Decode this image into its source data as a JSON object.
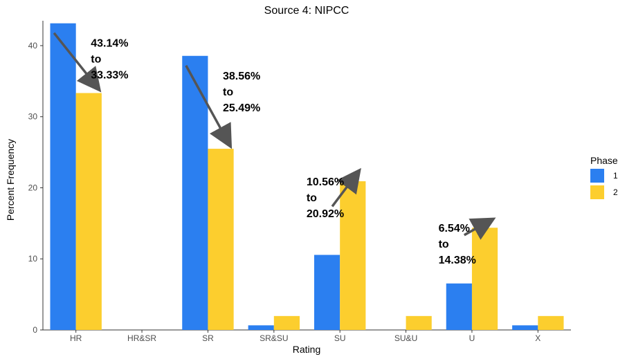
{
  "chart_data": {
    "type": "bar",
    "title": "Source 4: NIPCC",
    "xlabel": "Rating",
    "ylabel": "Percent Frequency",
    "categories": [
      "HR",
      "HR&SR",
      "SR",
      "SR&SU",
      "SU",
      "SU&U",
      "U",
      "X"
    ],
    "series": [
      {
        "name": "1",
        "color": "#2b7ff0",
        "values": [
          43.14,
          0,
          38.56,
          0.65,
          10.56,
          0,
          6.54,
          0.65
        ]
      },
      {
        "name": "2",
        "color": "#fcce2e",
        "values": [
          33.33,
          0,
          25.49,
          1.96,
          20.92,
          1.96,
          14.38,
          1.96
        ]
      }
    ],
    "ylim": [
      0,
      43.5
    ],
    "yticks": [
      0,
      10,
      20,
      30,
      40
    ],
    "grid": false,
    "legend": {
      "title": "Phase",
      "position": "right"
    },
    "annotations": [
      {
        "category": "HR",
        "lines": [
          "43.14%",
          "to",
          "33.33%"
        ],
        "from": 43.14,
        "to": 33.33
      },
      {
        "category": "SR",
        "lines": [
          "38.56%",
          "to",
          "25.49%"
        ],
        "from": 38.56,
        "to": 25.49
      },
      {
        "category": "SU",
        "lines": [
          "10.56%",
          "to",
          "20.92%"
        ],
        "from": 10.56,
        "to": 20.92
      },
      {
        "category": "U",
        "lines": [
          "6.54%",
          "to",
          "14.38%"
        ],
        "from": 6.54,
        "to": 14.38
      }
    ]
  }
}
